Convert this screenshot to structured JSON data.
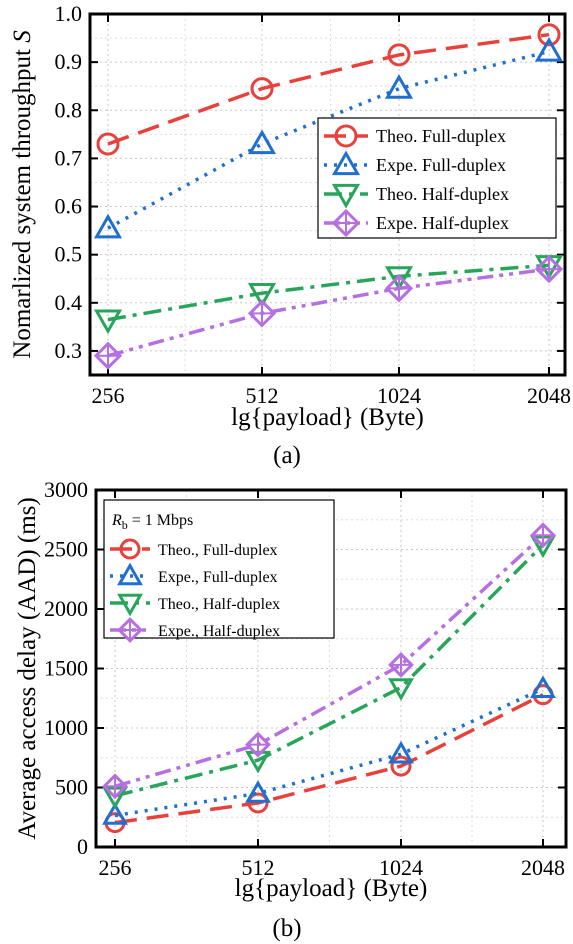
{
  "chart_data": [
    {
      "type": "line",
      "categories": [
        "256",
        "512",
        "1024",
        "2048"
      ],
      "xlabel": "lg{payload} (Byte)",
      "ylabel": "Nomarlized system throughput S",
      "ylim": [
        0.25,
        1.0
      ],
      "yticks": [
        "0.3",
        "0.4",
        "0.5",
        "0.6",
        "0.7",
        "0.8",
        "0.9",
        "1.0"
      ],
      "caption": "(a)",
      "grid": true,
      "legend_position": "center-right",
      "series": [
        {
          "name": "Theo. Full-duplex",
          "values": [
            0.73,
            0.845,
            0.915,
            0.957
          ],
          "color": "#e8413c",
          "marker": "circle",
          "dash": "dashed"
        },
        {
          "name": "Expe. Full-duplex",
          "values": [
            0.555,
            0.73,
            0.845,
            0.922
          ],
          "color": "#1f6fd1",
          "marker": "triangle-up",
          "dash": "dotted"
        },
        {
          "name": "Theo. Half-duplex",
          "values": [
            0.365,
            0.42,
            0.455,
            0.478
          ],
          "color": "#27a55a",
          "marker": "triangle-down",
          "dash": "dash-dot"
        },
        {
          "name": "Expe. Half-duplex",
          "values": [
            0.29,
            0.378,
            0.43,
            0.47
          ],
          "color": "#b66fe0",
          "marker": "diamond-cross",
          "dash": "dash-dot-dot"
        }
      ]
    },
    {
      "type": "line",
      "categories": [
        "256",
        "512",
        "1024",
        "2048"
      ],
      "xlabel": "lg{payload} (Byte)",
      "ylabel": "Average access delay (AAD) (ms)",
      "ylim": [
        0,
        3000
      ],
      "yticks": [
        "0",
        "500",
        "1000",
        "1500",
        "2000",
        "2500",
        "3000"
      ],
      "caption": "(b)",
      "grid": true,
      "legend_position": "top-left",
      "legend_title": {
        "main": "R",
        "sub": "b",
        "rest": " = 1 Mbps"
      },
      "series": [
        {
          "name": "Theo., Full-duplex",
          "values": [
            205,
            370,
            680,
            1280
          ],
          "color": "#e8413c",
          "marker": "circle",
          "dash": "dashed"
        },
        {
          "name": "Expe., Full-duplex",
          "values": [
            265,
            450,
            780,
            1330
          ],
          "color": "#1f6fd1",
          "marker": "triangle-up",
          "dash": "dotted"
        },
        {
          "name": "Theo., Half-duplex",
          "values": [
            430,
            730,
            1340,
            2540
          ],
          "color": "#27a55a",
          "marker": "triangle-down",
          "dash": "dash-dot"
        },
        {
          "name": "Expe., Half-duplex",
          "values": [
            510,
            860,
            1530,
            2620
          ],
          "color": "#b66fe0",
          "marker": "diamond-cross",
          "dash": "dash-dot-dot"
        }
      ]
    }
  ]
}
